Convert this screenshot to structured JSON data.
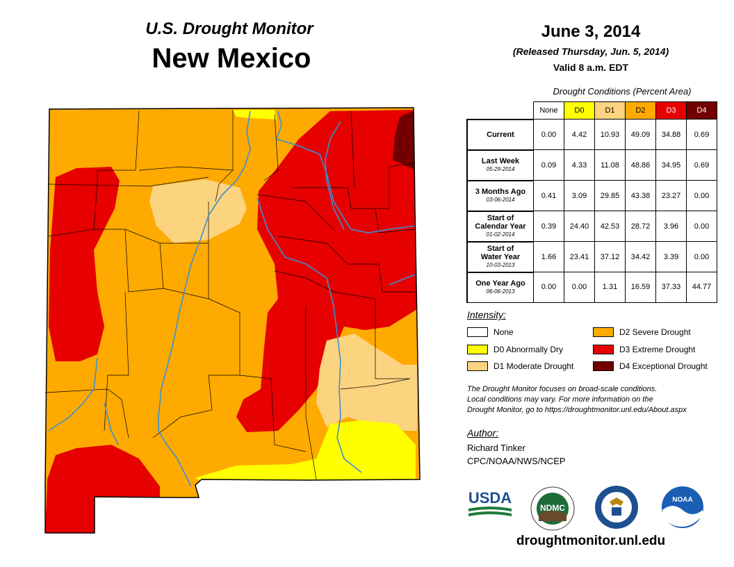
{
  "header": {
    "subtitle": "U.S. Drought Monitor",
    "state": "New Mexico",
    "date": "June 3, 2014",
    "released": "(Released Thursday, Jun. 5, 2014)",
    "valid": "Valid 8 a.m. EDT"
  },
  "conditions": {
    "caption": "Drought Conditions (Percent Area)",
    "columns": [
      "None",
      "D0",
      "D1",
      "D2",
      "D3",
      "D4"
    ],
    "column_colors": [
      "#ffffff",
      "#ffff00",
      "#fcd37f",
      "#ffaa00",
      "#e60000",
      "#730000"
    ],
    "rows": [
      {
        "label": "Current",
        "sub": "",
        "values": [
          "0.00",
          "4.42",
          "10.93",
          "49.09",
          "34.88",
          "0.69"
        ]
      },
      {
        "label": "Last Week",
        "sub": "05-29-2014",
        "values": [
          "0.09",
          "4.33",
          "11.08",
          "48.86",
          "34.95",
          "0.69"
        ]
      },
      {
        "label": "3 Months Ago",
        "sub": "03-06-2014",
        "values": [
          "0.41",
          "3.09",
          "29.85",
          "43.38",
          "23.27",
          "0.00"
        ]
      },
      {
        "label": "Start of Calendar Year",
        "sub": "01-02-2014",
        "values": [
          "0.39",
          "24.40",
          "42.53",
          "28.72",
          "3.96",
          "0.00"
        ]
      },
      {
        "label": "Start of Water Year",
        "sub": "10-03-2013",
        "values": [
          "1.66",
          "23.41",
          "37.12",
          "34.42",
          "3.39",
          "0.00"
        ]
      },
      {
        "label": "One Year Ago",
        "sub": "06-06-2013",
        "values": [
          "0.00",
          "0.00",
          "1.31",
          "16.59",
          "37.33",
          "44.77"
        ]
      }
    ]
  },
  "legend": {
    "title": "Intensity:",
    "items": [
      {
        "label": "None",
        "color": "#ffffff"
      },
      {
        "label": "D0 Abnormally Dry",
        "color": "#ffff00"
      },
      {
        "label": "D1 Moderate Drought",
        "color": "#fcd37f"
      },
      {
        "label": "D2 Severe Drought",
        "color": "#ffaa00"
      },
      {
        "label": "D3 Extreme Drought",
        "color": "#e60000"
      },
      {
        "label": "D4 Exceptional Drought",
        "color": "#730000"
      }
    ]
  },
  "note": {
    "line1": "The Drought Monitor focuses on broad-scale conditions.",
    "line2": "Local conditions may vary. For more information on the",
    "line3": "Drought Monitor, go to https://droughtmonitor.unl.edu/About.aspx"
  },
  "author": {
    "title": "Author:",
    "name": "Richard Tinker",
    "org": "CPC/NOAA/NWS/NCEP"
  },
  "logos": {
    "usda": "USDA",
    "ndmc": "NDMC",
    "noaa": "NOAA"
  },
  "site": "droughtmonitor.unl.edu",
  "colors": {
    "river": "#3a8fd6",
    "border": "#000000"
  }
}
